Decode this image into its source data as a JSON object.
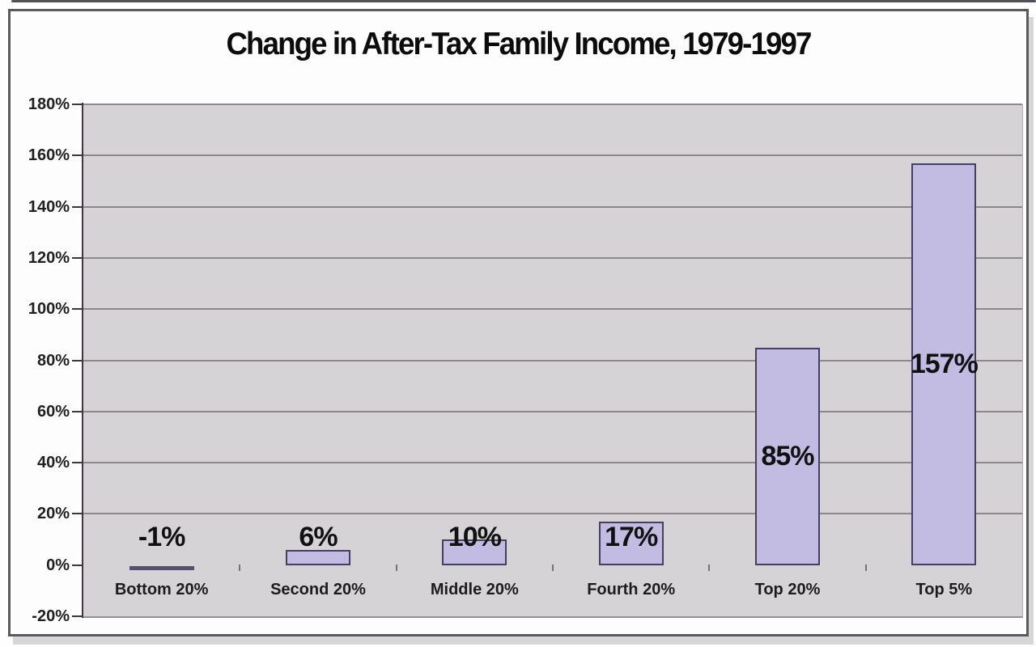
{
  "chart_data": {
    "type": "bar",
    "title": "Change in After-Tax Family Income, 1979-1997",
    "categories": [
      "Bottom 20%",
      "Second 20%",
      "Middle 20%",
      "Fourth 20%",
      "Top 20%",
      "Top 5%"
    ],
    "values": [
      -1,
      6,
      10,
      17,
      85,
      157
    ],
    "bar_labels": [
      "-1%",
      "6%",
      "10%",
      "17%",
      "85%",
      "157%"
    ],
    "y_ticks": [
      "180%",
      "160%",
      "140%",
      "120%",
      "100%",
      "80%",
      "60%",
      "40%",
      "20%",
      "0%",
      "-20%"
    ],
    "ylim": [
      -20,
      180
    ],
    "y_step": 20,
    "grid": true,
    "gridlines_at": [
      180,
      160,
      140,
      120,
      100,
      80,
      60,
      40,
      20
    ],
    "legend": "none",
    "xlabel": "",
    "ylabel": "",
    "colors": {
      "bar_fill": "#c2bbe2",
      "bar_border": "#45405c",
      "negative_bar": "#55516a",
      "plot_bg": "#d5d3d5",
      "gridline": "#8b878a",
      "axis_line": "#39393b",
      "boundary_tick": "#77737a",
      "text": "#111111"
    }
  }
}
